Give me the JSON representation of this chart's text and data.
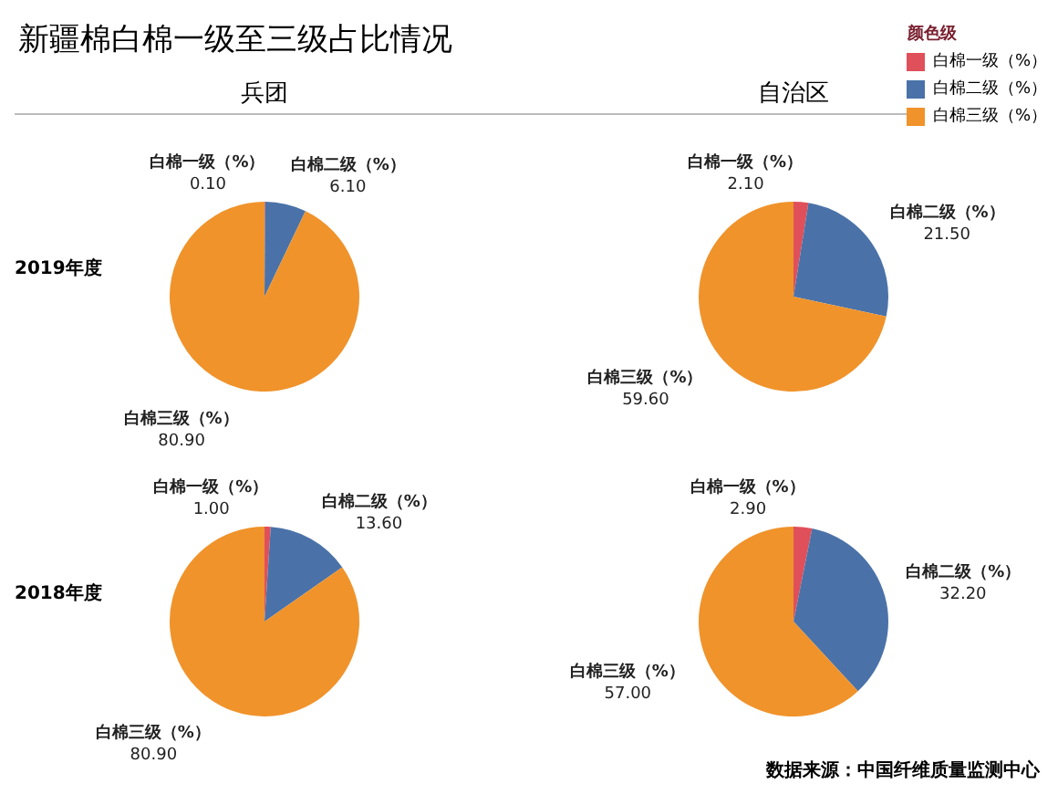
{
  "chart_data": [
    {
      "type": "pie",
      "title": "新疆棉白棉一级至三级占比情况",
      "subtitle": "兵团",
      "ylabel": "2019年度",
      "categories": [
        "白棉一级（%）",
        "白棉二级（%）",
        "白棉三级（%）"
      ],
      "values": [
        0.1,
        6.1,
        80.9
      ],
      "value_labels": [
        "0.10",
        "6.10",
        "80.90"
      ],
      "colors": [
        "#e0505a",
        "#4a72a8",
        "#f0932b"
      ]
    },
    {
      "type": "pie",
      "subtitle": "自治区",
      "legend": "top right",
      "legend_title": "颜色级",
      "categories": [
        "白棉一级（%）",
        "白棉二级（%）",
        "白棉三级（%）"
      ],
      "values": [
        2.1,
        21.5,
        59.6
      ],
      "value_labels": [
        "2.10",
        "21.50",
        "59.60"
      ],
      "colors": [
        "#e0505a",
        "#4a72a8",
        "#f0932b"
      ]
    },
    {
      "type": "pie",
      "ylabel": "2018年度",
      "categories": [
        "白棉一级（%）",
        "白棉二级（%）",
        "白棉三级（%）"
      ],
      "values": [
        1.0,
        13.6,
        80.9
      ],
      "value_labels": [
        "1.00",
        "13.60",
        "80.90"
      ],
      "colors": [
        "#e0505a",
        "#4a72a8",
        "#f0932b"
      ]
    },
    {
      "type": "pie",
      "annotations": [
        "数据来源：中国纤维质量监测中心"
      ],
      "categories": [
        "白棉一级（%）",
        "白棉二级（%）",
        "白棉三级（%）"
      ],
      "values": [
        2.9,
        32.2,
        57.0
      ],
      "value_labels": [
        "2.90",
        "32.20",
        "57.00"
      ],
      "colors": [
        "#e0505a",
        "#4a72a8",
        "#f0932b"
      ]
    }
  ]
}
